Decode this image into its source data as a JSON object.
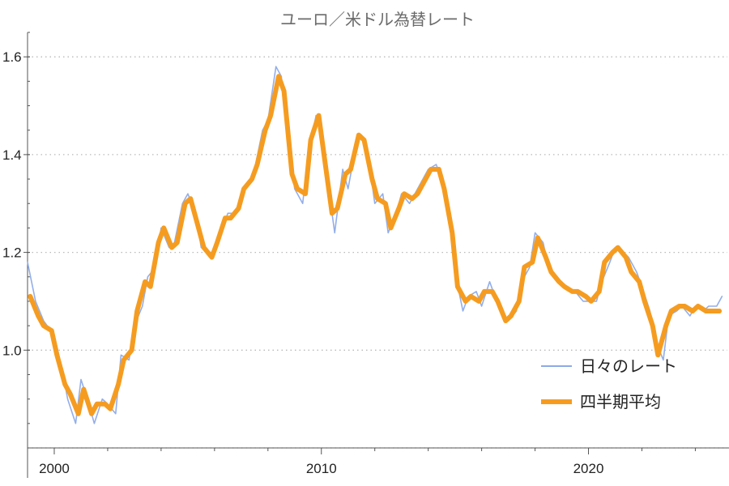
{
  "chart_data": {
    "type": "line",
    "title": "ユーロ／米ドル為替レート",
    "xlabel": "",
    "ylabel": "",
    "xlim": [
      1999.0,
      2025.2
    ],
    "ylim": [
      0.8,
      1.65
    ],
    "x_ticks": [
      2000,
      2010,
      2020
    ],
    "x_tick_labels": [
      "2000",
      "2010",
      "2020"
    ],
    "y_ticks": [
      1.0,
      1.2,
      1.4,
      1.6
    ],
    "y_tick_labels": [
      "1.0",
      "1.2",
      "1.4",
      "1.6"
    ],
    "y_extra_gridlines": [
      0.8
    ],
    "grid": "horizontal dotted",
    "legend_position": "lower-right",
    "series": [
      {
        "name": "日々のレート",
        "color": "#8daae8",
        "style": "thin",
        "x": [
          1999.0,
          1999.3,
          1999.6,
          2000.0,
          2000.3,
          2000.5,
          2000.8,
          2001.0,
          2001.3,
          2001.5,
          2001.8,
          2002.0,
          2002.3,
          2002.5,
          2002.8,
          2003.0,
          2003.3,
          2003.5,
          2003.8,
          2004.0,
          2004.3,
          2004.5,
          2004.8,
          2005.0,
          2005.3,
          2005.5,
          2005.8,
          2006.0,
          2006.3,
          2006.5,
          2006.8,
          2007.0,
          2007.3,
          2007.5,
          2007.8,
          2008.0,
          2008.3,
          2008.5,
          2008.8,
          2009.0,
          2009.3,
          2009.5,
          2009.8,
          2010.0,
          2010.3,
          2010.5,
          2010.8,
          2011.0,
          2011.3,
          2011.5,
          2011.8,
          2012.0,
          2012.3,
          2012.5,
          2012.8,
          2013.0,
          2013.3,
          2013.5,
          2013.8,
          2014.0,
          2014.3,
          2014.5,
          2014.8,
          2015.0,
          2015.3,
          2015.5,
          2015.8,
          2016.0,
          2016.3,
          2016.5,
          2016.8,
          2017.0,
          2017.3,
          2017.5,
          2017.8,
          2018.0,
          2018.3,
          2018.5,
          2018.8,
          2019.0,
          2019.3,
          2019.5,
          2019.8,
          2020.0,
          2020.3,
          2020.5,
          2020.8,
          2021.0,
          2021.3,
          2021.5,
          2021.8,
          2022.0,
          2022.3,
          2022.5,
          2022.8,
          2023.0,
          2023.3,
          2023.5,
          2023.8,
          2024.0,
          2024.3,
          2024.5,
          2024.8,
          2025.0
        ],
        "values": [
          1.18,
          1.1,
          1.06,
          1.03,
          0.96,
          0.9,
          0.85,
          0.94,
          0.89,
          0.85,
          0.9,
          0.89,
          0.87,
          0.99,
          0.98,
          1.05,
          1.09,
          1.15,
          1.17,
          1.25,
          1.21,
          1.22,
          1.3,
          1.32,
          1.28,
          1.21,
          1.2,
          1.2,
          1.25,
          1.28,
          1.28,
          1.32,
          1.34,
          1.37,
          1.45,
          1.47,
          1.58,
          1.56,
          1.41,
          1.33,
          1.3,
          1.4,
          1.48,
          1.44,
          1.32,
          1.24,
          1.37,
          1.33,
          1.42,
          1.44,
          1.38,
          1.3,
          1.32,
          1.24,
          1.28,
          1.32,
          1.3,
          1.32,
          1.35,
          1.37,
          1.38,
          1.35,
          1.26,
          1.16,
          1.08,
          1.11,
          1.12,
          1.09,
          1.14,
          1.11,
          1.07,
          1.06,
          1.08,
          1.14,
          1.17,
          1.24,
          1.22,
          1.17,
          1.15,
          1.14,
          1.12,
          1.12,
          1.1,
          1.1,
          1.1,
          1.14,
          1.18,
          1.21,
          1.2,
          1.19,
          1.16,
          1.13,
          1.08,
          1.02,
          0.98,
          1.07,
          1.08,
          1.09,
          1.07,
          1.09,
          1.08,
          1.09,
          1.09,
          1.11
        ]
      },
      {
        "name": "四半期平均",
        "color": "#f59c20",
        "style": "thick",
        "x": [
          1999.1,
          1999.4,
          1999.6,
          1999.9,
          2000.1,
          2000.4,
          2000.6,
          2000.9,
          2001.1,
          2001.4,
          2001.6,
          2001.9,
          2002.1,
          2002.4,
          2002.6,
          2002.9,
          2003.1,
          2003.4,
          2003.6,
          2003.9,
          2004.1,
          2004.4,
          2004.6,
          2004.9,
          2005.1,
          2005.4,
          2005.6,
          2005.9,
          2006.1,
          2006.4,
          2006.6,
          2006.9,
          2007.1,
          2007.4,
          2007.6,
          2007.9,
          2008.1,
          2008.4,
          2008.6,
          2008.9,
          2009.1,
          2009.4,
          2009.6,
          2009.9,
          2010.1,
          2010.4,
          2010.6,
          2010.9,
          2011.1,
          2011.4,
          2011.6,
          2011.9,
          2012.1,
          2012.4,
          2012.6,
          2012.9,
          2013.1,
          2013.4,
          2013.6,
          2013.9,
          2014.1,
          2014.4,
          2014.6,
          2014.9,
          2015.1,
          2015.4,
          2015.6,
          2015.9,
          2016.1,
          2016.4,
          2016.6,
          2016.9,
          2017.1,
          2017.4,
          2017.6,
          2017.9,
          2018.1,
          2018.4,
          2018.6,
          2018.9,
          2019.1,
          2019.4,
          2019.6,
          2019.9,
          2020.1,
          2020.4,
          2020.6,
          2020.9,
          2021.1,
          2021.4,
          2021.6,
          2021.9,
          2022.1,
          2022.4,
          2022.6,
          2022.9,
          2023.1,
          2023.4,
          2023.6,
          2023.9,
          2024.1,
          2024.4,
          2024.6,
          2024.9
        ],
        "values": [
          1.11,
          1.07,
          1.05,
          1.04,
          0.99,
          0.93,
          0.91,
          0.87,
          0.92,
          0.87,
          0.89,
          0.89,
          0.88,
          0.93,
          0.98,
          1.0,
          1.08,
          1.14,
          1.13,
          1.22,
          1.25,
          1.21,
          1.22,
          1.3,
          1.31,
          1.25,
          1.21,
          1.19,
          1.22,
          1.27,
          1.27,
          1.29,
          1.33,
          1.35,
          1.38,
          1.45,
          1.48,
          1.56,
          1.53,
          1.36,
          1.33,
          1.32,
          1.43,
          1.48,
          1.4,
          1.28,
          1.29,
          1.36,
          1.37,
          1.44,
          1.43,
          1.35,
          1.31,
          1.3,
          1.25,
          1.29,
          1.32,
          1.31,
          1.32,
          1.35,
          1.37,
          1.37,
          1.33,
          1.24,
          1.13,
          1.1,
          1.11,
          1.1,
          1.12,
          1.12,
          1.1,
          1.06,
          1.07,
          1.1,
          1.17,
          1.18,
          1.23,
          1.19,
          1.16,
          1.14,
          1.13,
          1.12,
          1.12,
          1.11,
          1.1,
          1.12,
          1.18,
          1.2,
          1.21,
          1.19,
          1.16,
          1.14,
          1.1,
          1.05,
          0.99,
          1.05,
          1.08,
          1.09,
          1.09,
          1.08,
          1.09,
          1.08,
          1.08,
          1.08
        ]
      }
    ]
  }
}
